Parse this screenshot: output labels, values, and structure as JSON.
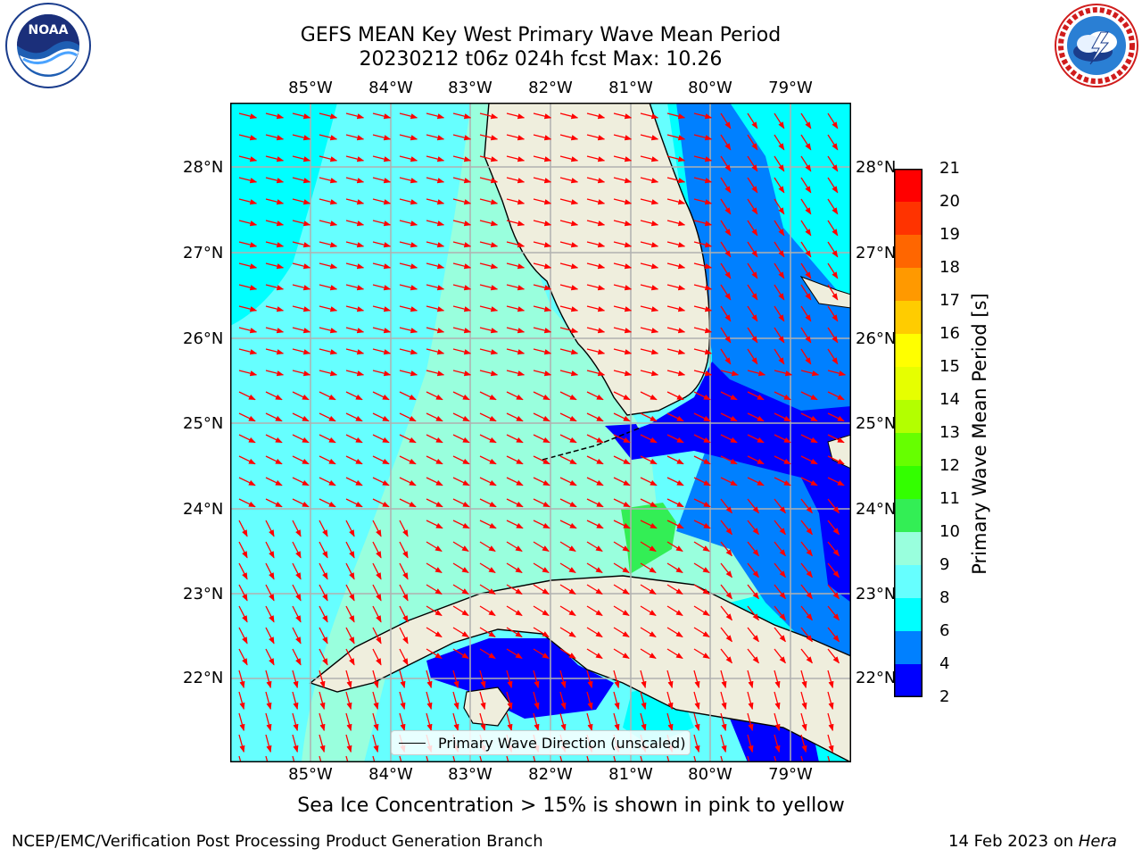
{
  "title": {
    "line1": "GEFS MEAN Key West Primary Wave Mean Period",
    "line2": "20230212 t06z 024h fcst   Max: 10.26"
  },
  "logos": {
    "noaa": {
      "text": "NOAA",
      "ring_text": "NATIONAL OCEANIC AND ATMOSPHERIC ADMINISTRATION · U.S. DEPARTMENT OF COMMERCE"
    },
    "nws": {
      "ring_text": "NATIONAL WEATHER SERVICE"
    }
  },
  "axes": {
    "lon_labels": [
      "85°W",
      "84°W",
      "83°W",
      "82°W",
      "81°W",
      "80°W",
      "79°W"
    ],
    "lat_labels": [
      "28°N",
      "27°N",
      "26°N",
      "25°N",
      "24°N",
      "23°N",
      "22°N"
    ]
  },
  "colorbar": {
    "label": "Primary Wave Mean Period [s]",
    "ticks": [
      "21",
      "20",
      "19",
      "18",
      "17",
      "16",
      "15",
      "14",
      "13",
      "12",
      "11",
      "10",
      "9",
      "8",
      "6",
      "4",
      "2"
    ],
    "colors": [
      "#ff0000",
      "#ff3300",
      "#ff6600",
      "#ff9900",
      "#ffcc00",
      "#ffff00",
      "#e6ff00",
      "#b3ff00",
      "#66ff00",
      "#33ff00",
      "#33ee55",
      "#99ffdd",
      "#66ffff",
      "#00ffff",
      "#0080ff",
      "#0000ff"
    ]
  },
  "legend": {
    "label": "Primary Wave Direction (unscaled)"
  },
  "note": "Sea Ice Concentration > 15% is shown in pink to yellow",
  "footer": {
    "left": "NCEP/EMC/Verification Post Processing Product Generation Branch",
    "right_prefix": "14 Feb 2023 on ",
    "right_machine": "Hera"
  },
  "colors": {
    "land": "#efeedd",
    "arrow": "#ff0000",
    "gridline": "#b0b0b0"
  }
}
